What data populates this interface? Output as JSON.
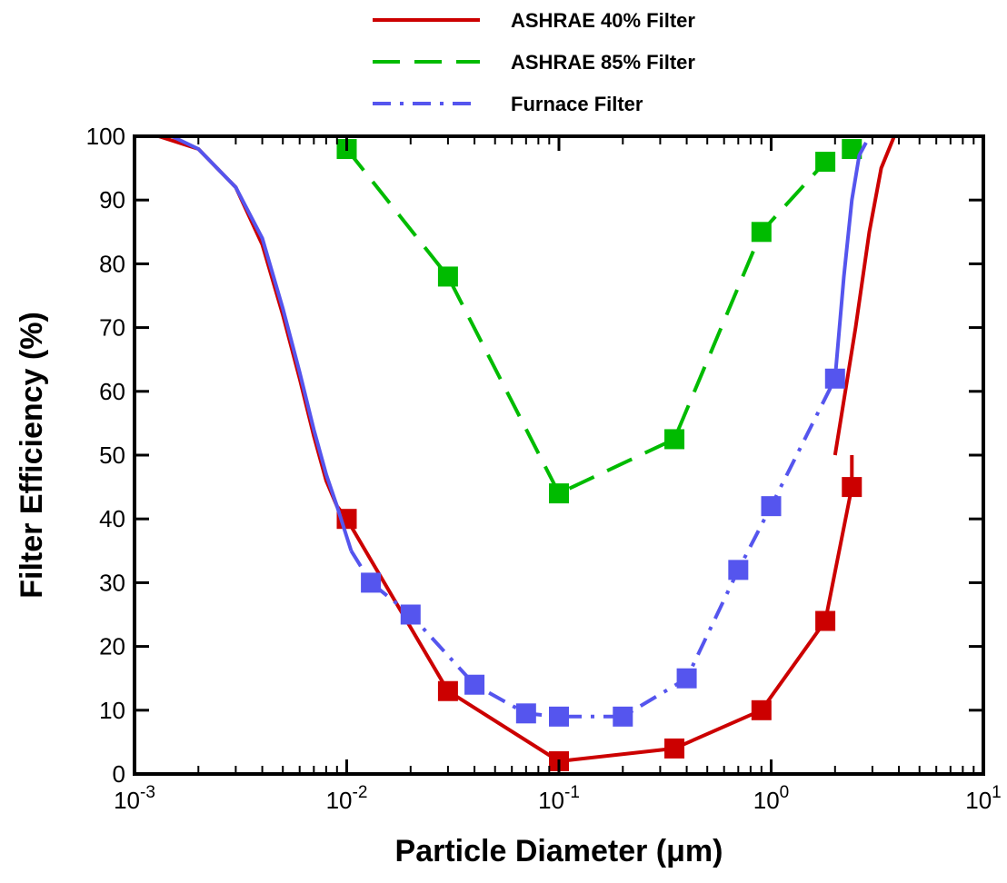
{
  "chart_data": {
    "type": "line",
    "xlabel": "Particle Diameter (μm)",
    "ylabel": "Filter Efficiency (%)",
    "x_scale": "log",
    "xlim": [
      0.001,
      10
    ],
    "ylim": [
      0,
      100
    ],
    "x_ticks": [
      {
        "mantissa": "10",
        "exp": "-3"
      },
      {
        "mantissa": "10",
        "exp": "-2"
      },
      {
        "mantissa": "10",
        "exp": "-1"
      },
      {
        "mantissa": "10",
        "exp": "0"
      },
      {
        "mantissa": "10",
        "exp": "1"
      }
    ],
    "y_ticks": [
      "0",
      "10",
      "20",
      "30",
      "40",
      "50",
      "60",
      "70",
      "80",
      "90",
      "100"
    ],
    "grid": false,
    "legend_position": "top-center",
    "series": [
      {
        "name": "ASHRAE 40% Filter",
        "color": "#cc0000",
        "dash": "solid",
        "curve": [
          [
            0.0013,
            100
          ],
          [
            0.002,
            98
          ],
          [
            0.003,
            92
          ],
          [
            0.004,
            83
          ],
          [
            0.005,
            72
          ],
          [
            0.006,
            62
          ],
          [
            0.007,
            53
          ],
          [
            0.008,
            46
          ],
          [
            0.009,
            42
          ],
          [
            0.01,
            40
          ],
          [
            2.0,
            50
          ],
          [
            2.5,
            70
          ],
          [
            2.9,
            85
          ],
          [
            3.3,
            95
          ],
          [
            3.8,
            100
          ],
          [
            4.2,
            100
          ]
        ],
        "points": [
          [
            0.01,
            40
          ],
          [
            0.03,
            13
          ],
          [
            0.1,
            2
          ],
          [
            0.35,
            4
          ],
          [
            0.9,
            10
          ],
          [
            1.8,
            24
          ],
          [
            2.4,
            45
          ]
        ],
        "path": [
          [
            0.01,
            40
          ],
          [
            0.03,
            13
          ],
          [
            0.1,
            2
          ],
          [
            0.35,
            4
          ],
          [
            0.9,
            10
          ],
          [
            1.8,
            24
          ],
          [
            2.4,
            45
          ],
          [
            2.4,
            50
          ]
        ]
      },
      {
        "name": "ASHRAE 85% Filter",
        "color": "#00bb00",
        "dash": "long-dash",
        "points": [
          [
            0.01,
            98
          ],
          [
            0.03,
            78
          ],
          [
            0.1,
            44
          ],
          [
            0.35,
            52.5
          ],
          [
            0.9,
            85
          ],
          [
            1.8,
            96
          ],
          [
            2.4,
            98
          ]
        ],
        "path": [
          [
            0.01,
            98
          ],
          [
            0.03,
            78
          ],
          [
            0.1,
            44
          ],
          [
            0.35,
            52.5
          ],
          [
            0.9,
            85
          ],
          [
            1.8,
            96
          ],
          [
            2.4,
            98
          ]
        ]
      },
      {
        "name": "Furnace Filter",
        "color": "#5555ee",
        "dash": "dash-dot",
        "curve": [
          [
            0.0015,
            100
          ],
          [
            0.002,
            98
          ],
          [
            0.003,
            92
          ],
          [
            0.004,
            84
          ],
          [
            0.005,
            73
          ],
          [
            0.006,
            63
          ],
          [
            0.007,
            54
          ],
          [
            0.008,
            47
          ],
          [
            0.009,
            42
          ],
          [
            0.0105,
            35
          ],
          [
            2.0,
            62
          ],
          [
            2.2,
            78
          ],
          [
            2.4,
            90
          ],
          [
            2.6,
            97
          ],
          [
            2.8,
            99
          ]
        ],
        "points": [
          [
            0.013,
            30
          ],
          [
            0.02,
            25
          ],
          [
            0.04,
            14
          ],
          [
            0.07,
            9.5
          ],
          [
            0.1,
            9
          ],
          [
            0.2,
            9
          ],
          [
            0.4,
            15
          ],
          [
            0.7,
            32
          ],
          [
            1.0,
            42
          ],
          [
            2.0,
            62
          ]
        ],
        "path": [
          [
            0.0105,
            35
          ],
          [
            0.013,
            30
          ],
          [
            0.02,
            25
          ],
          [
            0.04,
            14
          ],
          [
            0.07,
            9.5
          ],
          [
            0.1,
            9
          ],
          [
            0.2,
            9
          ],
          [
            0.4,
            15
          ],
          [
            0.7,
            32
          ],
          [
            1.0,
            42
          ],
          [
            2.0,
            62
          ]
        ]
      }
    ]
  }
}
